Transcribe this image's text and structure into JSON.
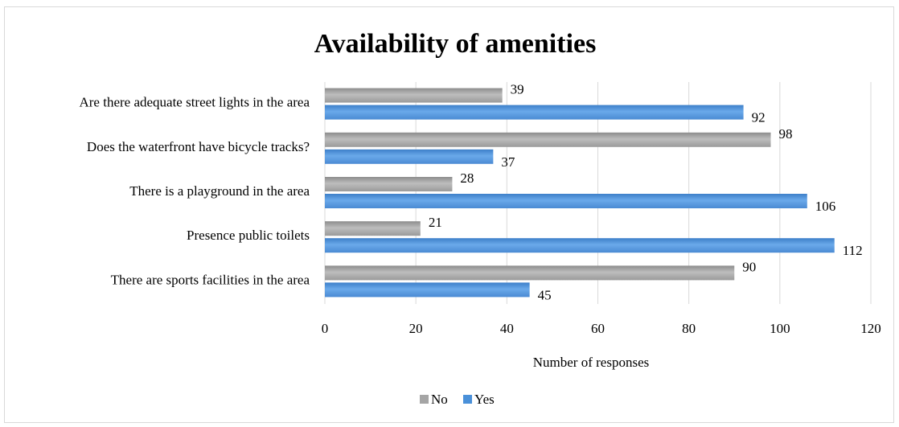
{
  "chart_data": {
    "type": "bar",
    "orientation": "horizontal",
    "title": "Availability of amenities",
    "xlabel": "Number of responses",
    "ylabel": "",
    "xlim": [
      0,
      120
    ],
    "x_ticks": [
      "0",
      "20",
      "40",
      "60",
      "80",
      "100",
      "120"
    ],
    "categories": [
      "Are there adequate street lights in the area",
      "Does the waterfront have bicycle tracks?",
      "There is a playground in the area",
      "Presence public toilets",
      "There are sports facilities in the area"
    ],
    "series": [
      {
        "name": "No",
        "color": "#a5a5a5",
        "values": [
          39,
          98,
          28,
          21,
          90
        ]
      },
      {
        "name": "Yes",
        "color": "#4a90d9",
        "values": [
          92,
          37,
          106,
          112,
          45
        ]
      }
    ],
    "grid": "vertical",
    "legend": "bottom"
  }
}
